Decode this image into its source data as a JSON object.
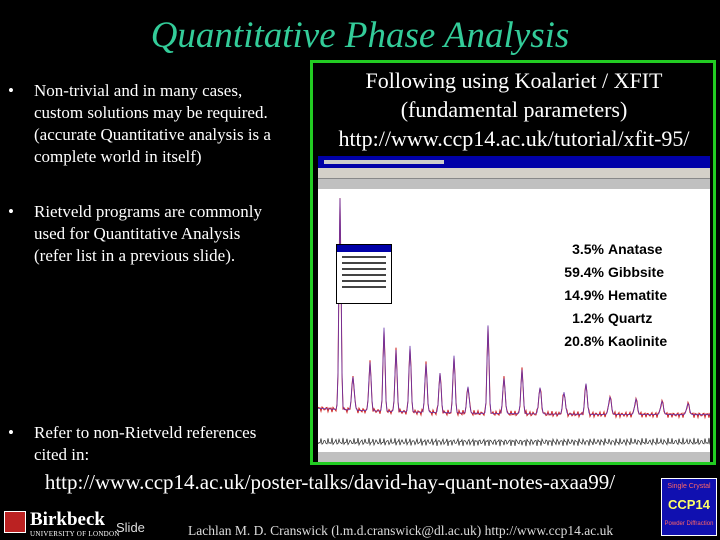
{
  "title": "Quantitative Phase Analysis",
  "bullets": [
    {
      "marker": "•",
      "lines": [
        "Non-trivial and in many cases,",
        "custom solutions may be required.",
        "(accurate Quantitative analysis is a",
        "complete world in itself)"
      ]
    },
    {
      "marker": "•",
      "lines": [
        "Rietveld programs are commonly",
        "used for Quantitative Analysis",
        "(refer list in a previous slide)."
      ]
    },
    {
      "marker": "•",
      "lines": [
        "Refer to non-Rietveld references",
        "cited in:"
      ]
    }
  ],
  "right_header": {
    "line1": "Following using Koalariet / XFIT",
    "line2": "(fundamental parameters)",
    "url": "http://www.ccp14.ac.uk/tutorial/xfit-95/"
  },
  "results": [
    {
      "pct": "3.5%",
      "phase": "Anatase"
    },
    {
      "pct": "59.4%",
      "phase": "Gibbsite"
    },
    {
      "pct": "14.9%",
      "phase": "Hematite"
    },
    {
      "pct": "1.2%",
      "phase": "Quartz"
    },
    {
      "pct": "20.8%",
      "phase": "Kaolinite"
    }
  ],
  "bottom_url": "http://www.ccp14.ac.uk/poster-talks/david-hay-quant-notes-axaa99/",
  "logo": {
    "name": "Birkbeck",
    "sub": "UNIVERSITY OF LONDON"
  },
  "slide_label": "Slide",
  "footer": "Lachlan M. D. Cranswick (l.m.d.cranswick@dl.ac.uk) http://www.ccp14.ac.uk",
  "ccp_logo": {
    "top": "Single Crystal",
    "main": "CCP14",
    "bottom": "Powder Diffraction"
  },
  "colors": {
    "title": "#33cc99",
    "frame": "#22cc22",
    "observed": "#cc2222",
    "calculated": "#6633aa"
  }
}
